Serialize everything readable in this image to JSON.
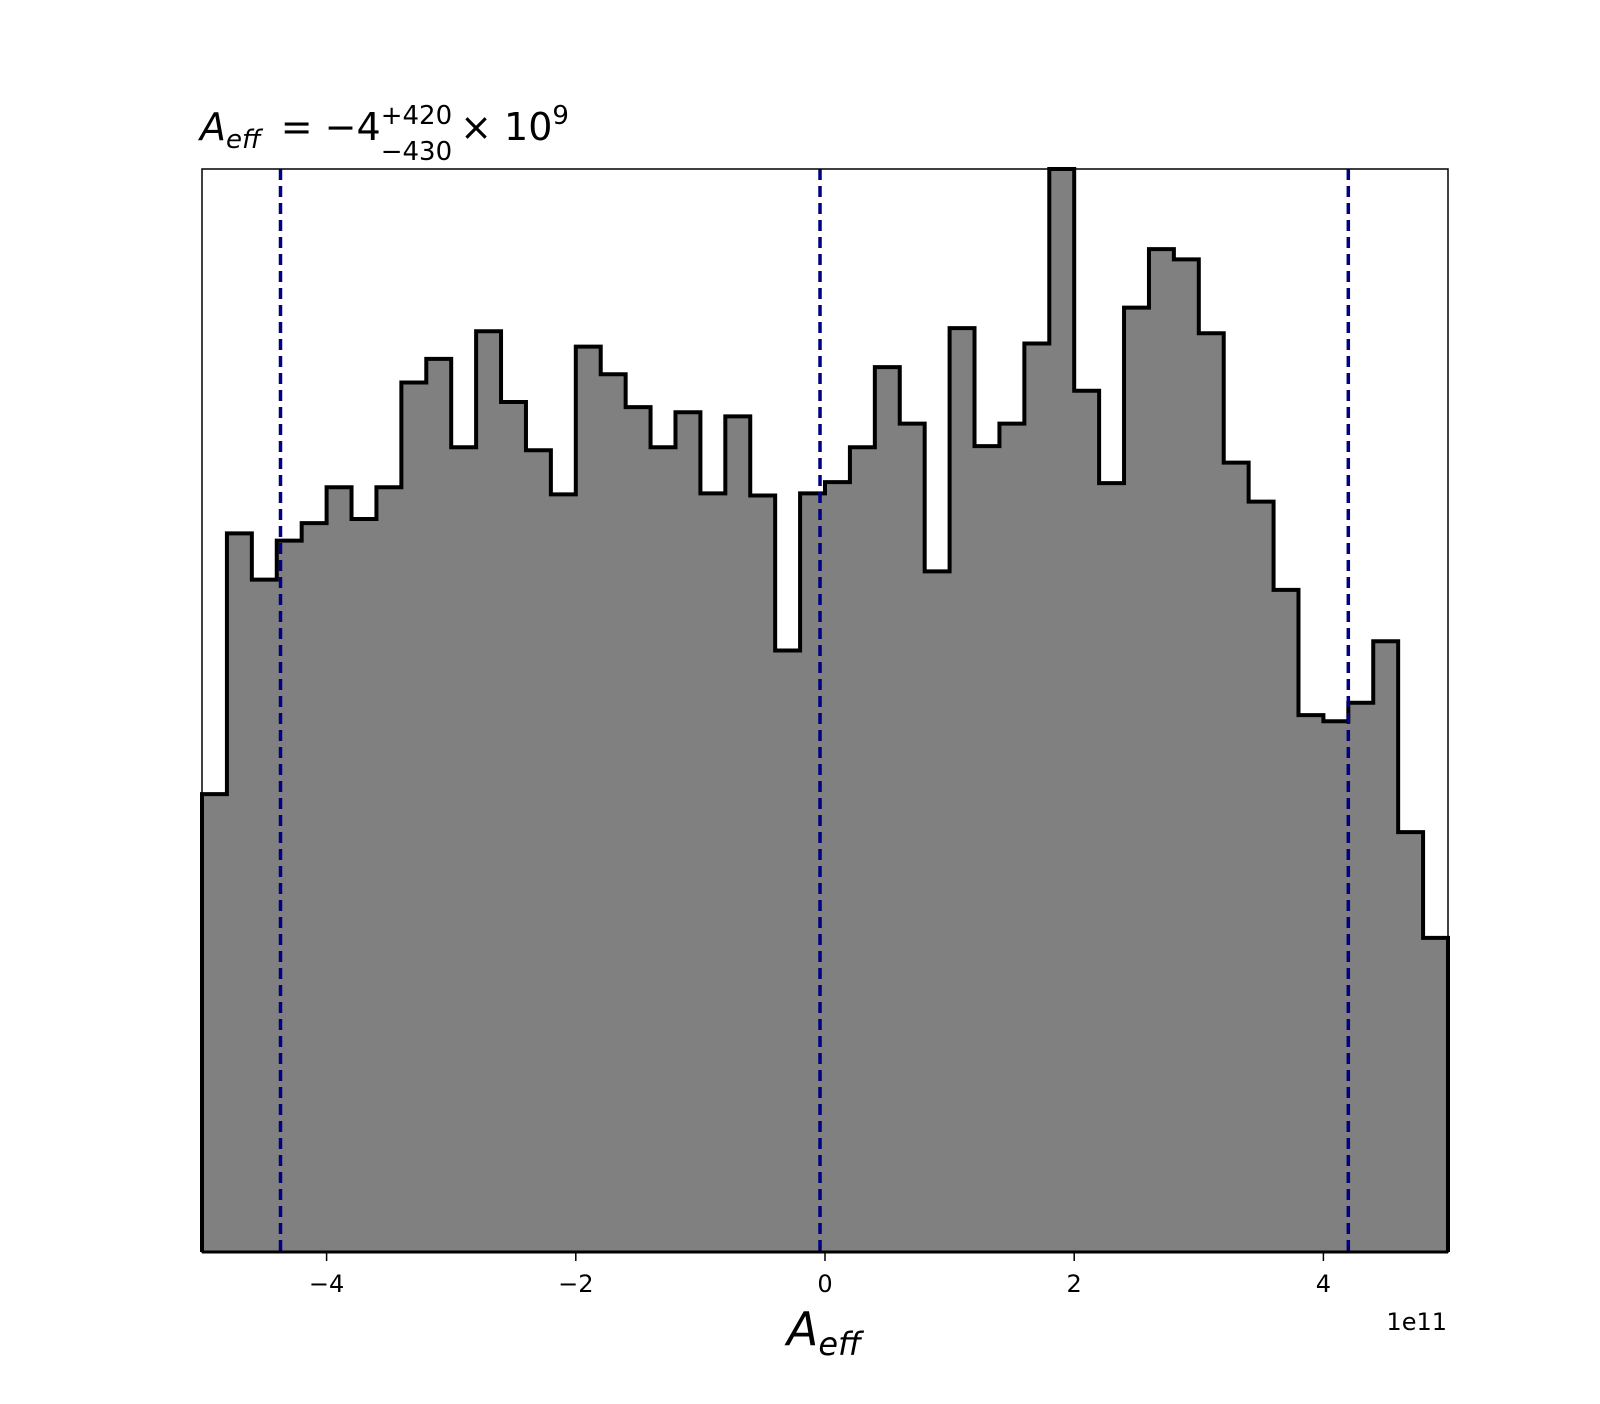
{
  "chart_data": {
    "type": "histogram",
    "title": {
      "symbol": "A",
      "symbol_sub": "eff",
      "base": "= −4",
      "sup": "+420",
      "sub": "−430",
      "times": "× 10",
      "exp": "9"
    },
    "xlabel": {
      "symbol": "A",
      "symbol_sub": "eff"
    },
    "x_offset_text": "1e11",
    "bins": [
      -5.0,
      -4.8,
      -4.6,
      -4.4,
      -4.2,
      -4.0,
      -3.8,
      -3.6,
      -3.4,
      -3.2,
      -3.0,
      -2.8,
      -2.6,
      -2.4,
      -2.2,
      -2.0,
      -1.8,
      -1.6,
      -1.4,
      -1.2,
      -1.0,
      -0.8,
      -0.6,
      -0.4,
      -0.2,
      0.0,
      0.2,
      0.4,
      0.6,
      0.8,
      1.0,
      1.2,
      1.4,
      1.6,
      1.8,
      2.0,
      2.2,
      2.4,
      2.6,
      2.8,
      3.0,
      3.2,
      3.4,
      3.6,
      3.8,
      4.0,
      4.2,
      4.4,
      4.6,
      4.8,
      5.0
    ],
    "values": [
      446,
      700,
      655,
      693,
      710,
      745,
      714,
      745,
      847,
      870,
      784,
      897,
      828,
      781,
      738,
      882,
      855,
      823,
      784,
      818,
      739,
      814,
      737,
      586,
      739,
      750,
      784,
      862,
      807,
      663,
      900,
      785,
      807,
      885,
      1055,
      839,
      749,
      920,
      977,
      967,
      895,
      769,
      731,
      645,
      523,
      517,
      535,
      595,
      409,
      306
    ],
    "color": "#808080",
    "edgecolor": "#000000",
    "xlim": [
      -5,
      5
    ],
    "ylim": [
      0,
      1055
    ],
    "xticks": [
      {
        "value": -4,
        "label": "−4"
      },
      {
        "value": -2,
        "label": "−2"
      },
      0,
      2,
      4
    ],
    "vlines": [
      -4.37,
      -0.04,
      4.2
    ],
    "vline_color": "#000080"
  }
}
